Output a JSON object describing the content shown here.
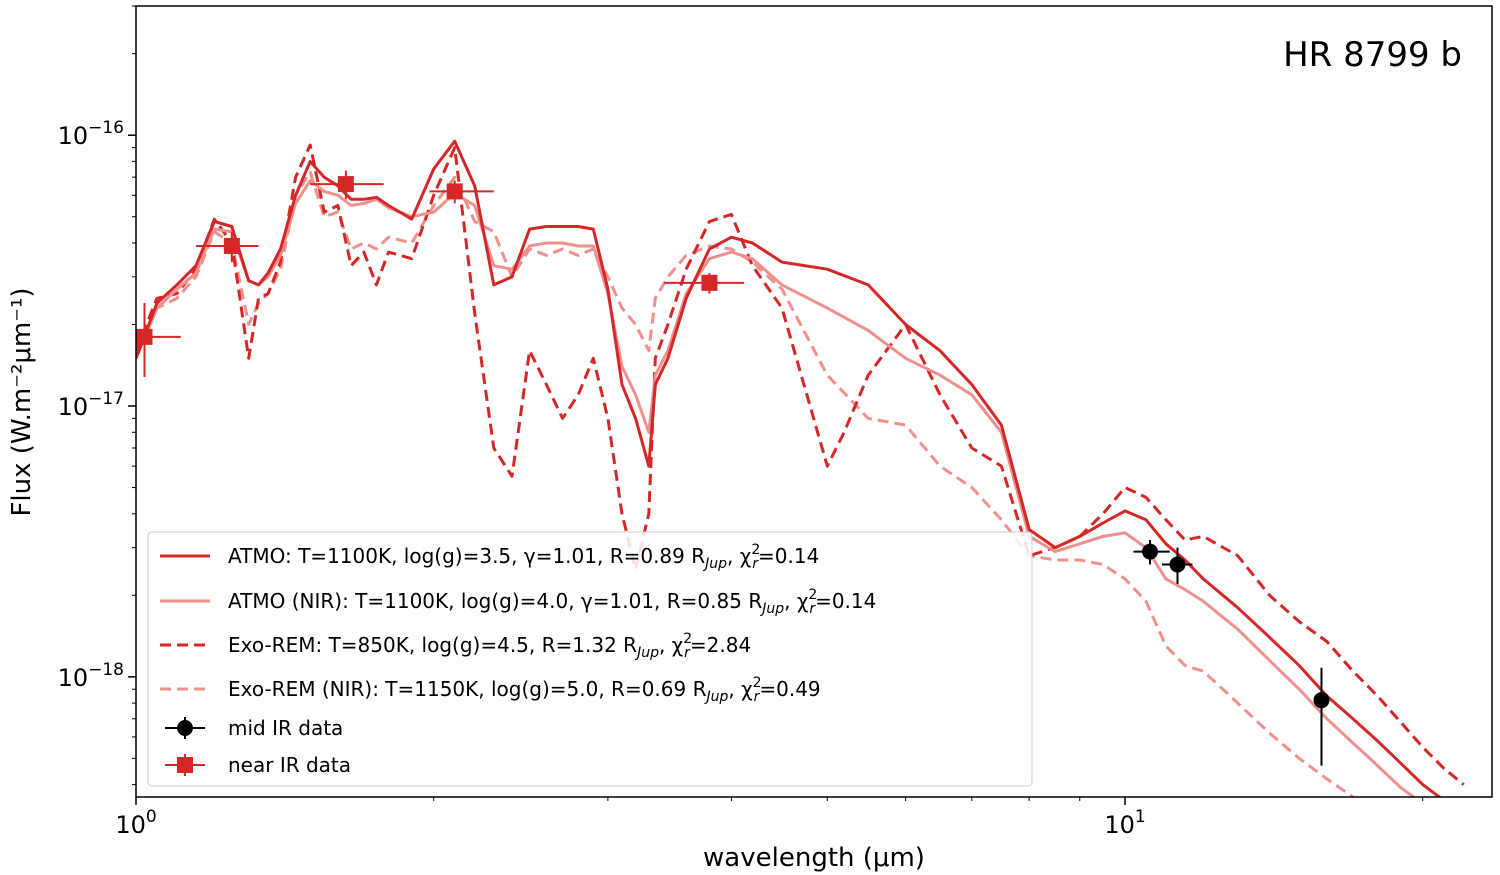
{
  "chart_data": {
    "type": "line",
    "title": "HR 8799 b",
    "xlabel": "wavelength (μm)",
    "ylabel": "Flux (W.m⁻²μm⁻¹)",
    "xscale": "log",
    "yscale": "log",
    "xlim": [
      1.0,
      23.5
    ],
    "ylim": [
      3.6e-19,
      3e-16
    ],
    "x_ticks": [
      {
        "value": 1,
        "base": "10",
        "exp": "0"
      },
      {
        "value": 10,
        "base": "10",
        "exp": "1"
      }
    ],
    "y_ticks": [
      {
        "value": 1e-16,
        "base": "10",
        "exp": "−16"
      },
      {
        "value": 1e-17,
        "base": "10",
        "exp": "−17"
      },
      {
        "value": 1e-18,
        "base": "10",
        "exp": "−18"
      }
    ],
    "legend_position": "lower-left",
    "series": [
      {
        "key": "atmo",
        "label": "ATMO: T=1100K, log(g)=3.5, γ=1.01, R=0.89 R",
        "label_sub": "Jup",
        "label_tail": ", χ",
        "label_sup2": "2",
        "label_sub2": "r",
        "label_end": "=0.14",
        "color": "#d62728",
        "dash": "solid",
        "x": [
          1.0,
          1.05,
          1.1,
          1.15,
          1.2,
          1.25,
          1.3,
          1.33,
          1.36,
          1.4,
          1.45,
          1.5,
          1.55,
          1.6,
          1.65,
          1.7,
          1.75,
          1.8,
          1.9,
          2.0,
          2.1,
          2.2,
          2.3,
          2.4,
          2.5,
          2.6,
          2.7,
          2.8,
          2.9,
          3.0,
          3.1,
          3.2,
          3.3,
          3.35,
          3.45,
          3.6,
          3.8,
          4.0,
          4.2,
          4.5,
          5.0,
          5.5,
          6.0,
          6.5,
          7.0,
          7.5,
          8.0,
          8.5,
          9.0,
          9.5,
          10.0,
          10.5,
          11.0,
          11.5,
          12.0,
          13.0,
          14.0,
          15.0,
          16.0,
          17.0,
          18.0,
          19.0,
          20.0,
          21.0
        ],
        "y": [
          1.5e-17,
          2.4e-17,
          2.8e-17,
          3.3e-17,
          4.8e-17,
          4.6e-17,
          2.9e-17,
          2.8e-17,
          3.1e-17,
          3.8e-17,
          6e-17,
          8e-17,
          7e-17,
          6.5e-17,
          5.8e-17,
          5.8e-17,
          5.9e-17,
          5.5e-17,
          4.9e-17,
          7.5e-17,
          9.5e-17,
          6.5e-17,
          2.8e-17,
          3e-17,
          4.5e-17,
          4.6e-17,
          4.6e-17,
          4.6e-17,
          4.5e-17,
          2.7e-17,
          1.2e-17,
          9e-18,
          6e-18,
          1.2e-17,
          1.5e-17,
          2.5e-17,
          3.8e-17,
          4.2e-17,
          4e-17,
          3.4e-17,
          3.2e-17,
          2.8e-17,
          2e-17,
          1.6e-17,
          1.2e-17,
          8.5e-18,
          3.5e-18,
          3e-18,
          3.3e-18,
          3.7e-18,
          4.1e-18,
          3.8e-18,
          3.1e-18,
          2.7e-18,
          2.3e-18,
          1.8e-18,
          1.4e-18,
          1.1e-18,
          8.5e-19,
          7e-19,
          5.8e-19,
          4.8e-19,
          4e-19,
          3.5e-19
        ]
      },
      {
        "key": "atmo_nir",
        "label": "ATMO (NIR): T=1100K, log(g)=4.0, γ=1.01, R=0.85 R",
        "label_sub": "Jup",
        "label_tail": ", χ",
        "label_sup2": "2",
        "label_sub2": "r",
        "label_end": "=0.14",
        "color": "#f0908d",
        "dash": "solid",
        "x": [
          1.0,
          1.05,
          1.1,
          1.15,
          1.2,
          1.25,
          1.3,
          1.33,
          1.36,
          1.4,
          1.45,
          1.5,
          1.55,
          1.6,
          1.65,
          1.7,
          1.75,
          1.8,
          1.9,
          2.0,
          2.1,
          2.2,
          2.3,
          2.4,
          2.5,
          2.6,
          2.7,
          2.8,
          2.9,
          3.0,
          3.1,
          3.2,
          3.3,
          3.35,
          3.45,
          3.6,
          3.8,
          4.0,
          4.2,
          4.5,
          5.0,
          5.5,
          6.0,
          6.5,
          7.0,
          7.5,
          8.0,
          8.5,
          9.0,
          9.5,
          10.0,
          10.5,
          11.0,
          11.5,
          12.0,
          13.0,
          14.0,
          15.0,
          16.0,
          17.0,
          18.0,
          19.0,
          20.0
        ],
        "y": [
          1.5e-17,
          2.3e-17,
          2.7e-17,
          3.1e-17,
          4.5e-17,
          4.4e-17,
          2.9e-17,
          2.8e-17,
          3e-17,
          3.6e-17,
          5.6e-17,
          6.8e-17,
          6.2e-17,
          6e-17,
          5.5e-17,
          5.6e-17,
          5.8e-17,
          5.4e-17,
          5e-17,
          5.2e-17,
          6.1e-17,
          5.5e-17,
          3.3e-17,
          3.2e-17,
          3.9e-17,
          4e-17,
          4e-17,
          3.9e-17,
          3.9e-17,
          2.6e-17,
          1.4e-17,
          1.1e-17,
          8e-18,
          1.3e-17,
          1.6e-17,
          2.6e-17,
          3.5e-17,
          3.7e-17,
          3.5e-17,
          2.8e-17,
          2.3e-17,
          1.9e-17,
          1.5e-17,
          1.3e-17,
          1.1e-17,
          8e-18,
          3.3e-18,
          2.9e-18,
          3.1e-18,
          3.3e-18,
          3.4e-18,
          3e-18,
          2.3e-18,
          2.1e-18,
          1.9e-18,
          1.5e-18,
          1.15e-18,
          9e-19,
          7e-19,
          5.7e-19,
          4.7e-19,
          3.9e-19,
          3.4e-19
        ]
      },
      {
        "key": "exorem",
        "label": "Exo-REM: T=850K, log(g)=4.5, R=1.32 R",
        "label_sub": "Jup",
        "label_tail": ", χ",
        "label_sup2": "2",
        "label_sub2": "r",
        "label_end": "=2.84",
        "color": "#d62728",
        "dash": "dashed",
        "x": [
          1.0,
          1.05,
          1.1,
          1.15,
          1.2,
          1.25,
          1.3,
          1.33,
          1.36,
          1.4,
          1.45,
          1.5,
          1.55,
          1.6,
          1.65,
          1.7,
          1.75,
          1.8,
          1.9,
          2.0,
          2.1,
          2.2,
          2.3,
          2.4,
          2.5,
          2.6,
          2.7,
          2.8,
          2.9,
          3.0,
          3.1,
          3.2,
          3.3,
          3.35,
          3.45,
          3.6,
          3.8,
          4.0,
          4.2,
          4.5,
          5.0,
          5.2,
          5.5,
          6.0,
          6.5,
          7.0,
          7.5,
          8.0,
          8.5,
          9.0,
          9.5,
          10.0,
          10.5,
          11.0,
          11.5,
          12.0,
          13.0,
          14.0,
          15.0,
          16.0,
          17.0,
          18.0,
          19.0,
          20.0,
          21.0,
          22.0
        ],
        "y": [
          1.6e-17,
          2.5e-17,
          2.6e-17,
          3.2e-17,
          4.9e-17,
          4e-17,
          1.5e-17,
          2.5e-17,
          2.6e-17,
          3.4e-17,
          7e-17,
          9.2e-17,
          5.2e-17,
          5.5e-17,
          3.3e-17,
          3.7e-17,
          2.8e-17,
          3.7e-17,
          3.5e-17,
          6e-17,
          9e-17,
          2.2e-17,
          7e-18,
          5.5e-18,
          1.6e-17,
          1.2e-17,
          9e-18,
          1.1e-17,
          1.5e-17,
          9e-18,
          4e-18,
          2.5e-18,
          4e-18,
          1.5e-17,
          2e-17,
          3.2e-17,
          4.8e-17,
          5.1e-17,
          3.3e-17,
          2.3e-17,
          6e-18,
          8e-18,
          1.3e-17,
          2e-17,
          1.1e-17,
          7e-18,
          6e-18,
          2.8e-18,
          3e-18,
          3.3e-18,
          4e-18,
          5e-18,
          4.6e-18,
          3.8e-18,
          3.2e-18,
          3.3e-18,
          2.8e-18,
          2e-18,
          1.6e-18,
          1.35e-18,
          1.05e-18,
          8.5e-19,
          6.8e-19,
          5.5e-19,
          4.6e-19,
          4e-19
        ]
      },
      {
        "key": "exorem_nir",
        "label": "Exo-REM (NIR): T=1150K, log(g)=5.0, R=0.69 R",
        "label_sub": "Jup",
        "label_tail": ", χ",
        "label_sup2": "2",
        "label_sub2": "r",
        "label_end": "=0.49",
        "color": "#f0908d",
        "dash": "dashed",
        "x": [
          1.0,
          1.05,
          1.1,
          1.15,
          1.2,
          1.25,
          1.3,
          1.33,
          1.36,
          1.4,
          1.45,
          1.5,
          1.55,
          1.6,
          1.65,
          1.7,
          1.75,
          1.8,
          1.9,
          2.0,
          2.1,
          2.2,
          2.3,
          2.4,
          2.5,
          2.6,
          2.7,
          2.8,
          2.9,
          3.0,
          3.1,
          3.2,
          3.3,
          3.35,
          3.45,
          3.6,
          3.8,
          4.0,
          4.2,
          4.5,
          5.0,
          5.5,
          6.0,
          6.5,
          7.0,
          7.5,
          8.0,
          8.5,
          9.0,
          9.5,
          10.0,
          10.5,
          11.0,
          11.5,
          12.0,
          13.0,
          14.0,
          15.0,
          16.0,
          17.0,
          18.0
        ],
        "y": [
          1.5e-17,
          2.3e-17,
          2.5e-17,
          3e-17,
          4.4e-17,
          4e-17,
          2e-17,
          2.4e-17,
          2.6e-17,
          3.2e-17,
          6e-17,
          7.3e-17,
          5e-17,
          5.2e-17,
          3.8e-17,
          4e-17,
          3.8e-17,
          4.2e-17,
          4e-17,
          5.5e-17,
          7e-17,
          4.8e-17,
          4.4e-17,
          3e-17,
          3.8e-17,
          3.6e-17,
          3.8e-17,
          3.6e-17,
          3.8e-17,
          3e-17,
          2.3e-17,
          2e-17,
          1.6e-17,
          2.5e-17,
          3e-17,
          3.6e-17,
          3.9e-17,
          3.8e-17,
          3.4e-17,
          2.7e-17,
          1.3e-17,
          9e-18,
          8.5e-18,
          6e-18,
          5e-18,
          3.8e-18,
          2.8e-18,
          2.7e-18,
          2.7e-18,
          2.6e-18,
          2.3e-18,
          1.9e-18,
          1.3e-18,
          1.1e-18,
          1.05e-18,
          8e-19,
          6.2e-19,
          5e-19,
          4.2e-19,
          3.6e-19,
          3.2e-19
        ]
      }
    ],
    "mid_ir_data": {
      "label": "mid IR data",
      "color": "#000000",
      "points": [
        {
          "x": 10.6,
          "y": 2.9e-18,
          "xerr": [
            10.2,
            11.1
          ],
          "yerr": [
            2.6e-18,
            3.2e-18
          ]
        },
        {
          "x": 11.3,
          "y": 2.6e-18,
          "xerr": [
            10.9,
            11.7
          ],
          "yerr": [
            2.2e-18,
            3e-18
          ]
        },
        {
          "x": 15.8,
          "y": 8.2e-19,
          "xerr": [
            15.6,
            16.0
          ],
          "yerr": [
            4.7e-19,
            1.08e-18
          ]
        }
      ]
    },
    "near_ir_data": {
      "label": "near IR data",
      "color": "#d62728",
      "points": [
        {
          "x": 1.02,
          "y": 1.8e-17,
          "xerr": [
            1.0,
            1.11
          ],
          "yerr": [
            1.28e-17,
            2.4e-17
          ]
        },
        {
          "x": 1.25,
          "y": 3.9e-17,
          "xerr": [
            1.15,
            1.33
          ],
          "yerr": [
            3.4e-17,
            4.4e-17
          ]
        },
        {
          "x": 1.63,
          "y": 6.6e-17,
          "xerr": [
            1.5,
            1.78
          ],
          "yerr": [
            5.8e-17,
            7.4e-17
          ]
        },
        {
          "x": 2.1,
          "y": 6.2e-17,
          "xerr": [
            1.98,
            2.3
          ],
          "yerr": [
            5.6e-17,
            6.8e-17
          ]
        },
        {
          "x": 3.8,
          "y": 2.85e-17,
          "xerr": [
            3.42,
            4.12
          ],
          "yerr": [
            2.6e-17,
            3.1e-17
          ]
        }
      ]
    }
  }
}
